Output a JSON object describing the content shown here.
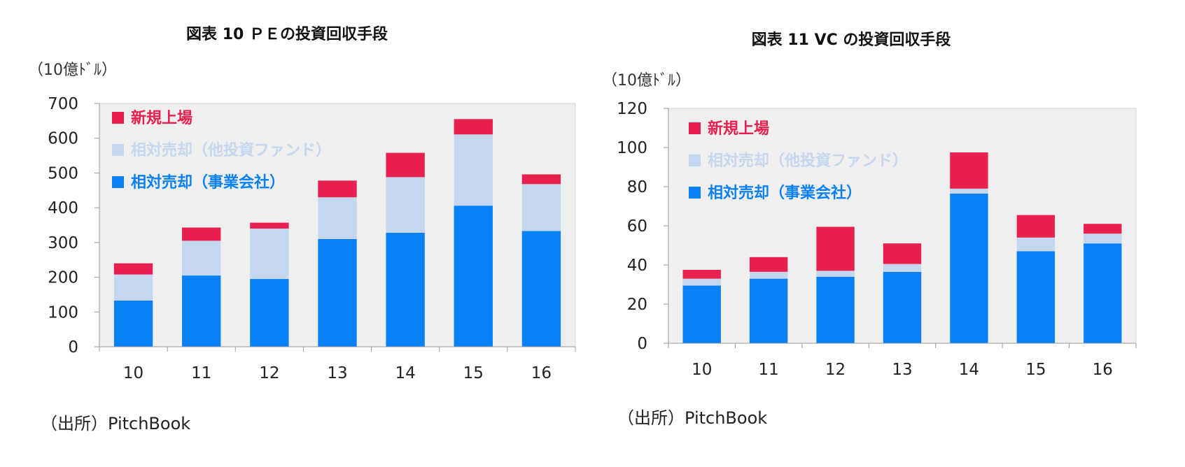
{
  "colors": {
    "ipo": "#e8204f",
    "secondary": "#c5d7ef",
    "strategic": "#0a80f5",
    "plot_bg": "#efefef"
  },
  "chart_data": [
    {
      "type": "bar",
      "stacked": true,
      "title": "図表 10 ＰＥの投資回収手段",
      "unit_label": "（10億ﾄﾞﾙ）",
      "source": "（出所）PitchBook",
      "categories": [
        "10",
        "11",
        "12",
        "13",
        "14",
        "15",
        "16"
      ],
      "ylim": [
        0,
        700
      ],
      "yticks": [
        0,
        100,
        200,
        300,
        400,
        500,
        600,
        700
      ],
      "series": [
        {
          "name": "相対売却（事業会社）",
          "color": "#0a80f5",
          "values": [
            133,
            205,
            195,
            310,
            328,
            406,
            333
          ]
        },
        {
          "name": "相対売却（他投資ファンド）",
          "color": "#c5d7ef",
          "values": [
            75,
            100,
            145,
            120,
            160,
            205,
            135
          ]
        },
        {
          "name": "新規上場",
          "color": "#e8204f",
          "values": [
            32,
            38,
            17,
            48,
            70,
            44,
            28
          ]
        }
      ],
      "legend_order": [
        "新規上場",
        "相対売却（他投資ファンド）",
        "相対売却（事業会社）"
      ],
      "legend_position": "top-left"
    },
    {
      "type": "bar",
      "stacked": true,
      "title": "図表 11 VC の投資回収手段",
      "unit_label": "（10億ﾄﾞﾙ）",
      "source": "（出所）PitchBook",
      "categories": [
        "10",
        "11",
        "12",
        "13",
        "14",
        "15",
        "16"
      ],
      "ylim": [
        0,
        120
      ],
      "yticks": [
        0,
        20,
        40,
        60,
        80,
        100,
        120
      ],
      "series": [
        {
          "name": "相対売却（事業会社）",
          "color": "#0a80f5",
          "values": [
            29.5,
            33,
            34,
            36.5,
            76.5,
            47,
            51
          ]
        },
        {
          "name": "相対売却（他投資ファンド）",
          "color": "#c5d7ef",
          "values": [
            3.5,
            3.5,
            3,
            4,
            2.5,
            7,
            5
          ]
        },
        {
          "name": "新規上場",
          "color": "#e8204f",
          "values": [
            4.5,
            7.5,
            22.5,
            10.5,
            18.5,
            11.5,
            5
          ]
        }
      ],
      "legend_order": [
        "新規上場",
        "相対売却（他投資ファンド）",
        "相対売却（事業会社）"
      ],
      "legend_position": "top-left"
    }
  ]
}
